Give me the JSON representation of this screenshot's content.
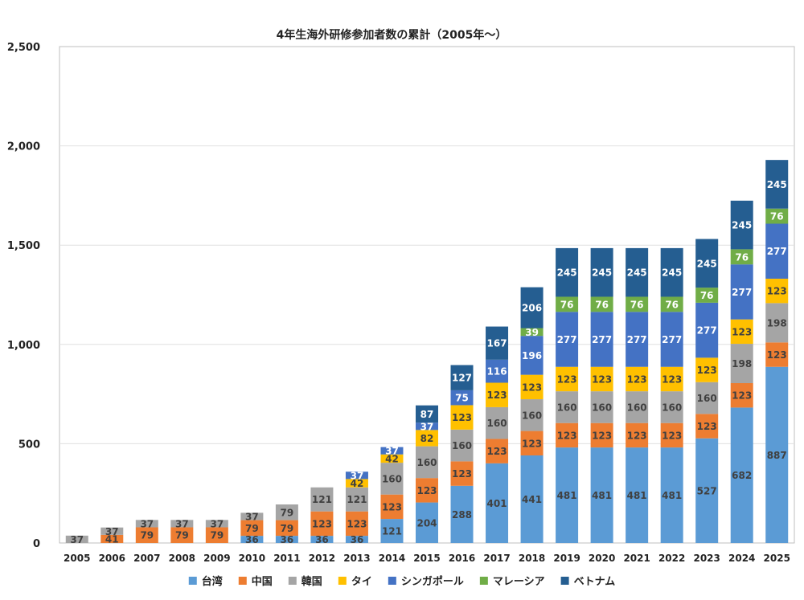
{
  "chart_data": {
    "type": "bar",
    "stacked": true,
    "title": "4年生海外研修参加者数の累計（2005年〜）",
    "xlabel": "",
    "ylabel": "",
    "ylim": [
      0,
      2500
    ],
    "yticks": [
      0,
      500,
      1000,
      1500,
      2000,
      2500
    ],
    "ytick_labels": [
      "0",
      "500",
      "1,000",
      "1,500",
      "2,000",
      "2,500"
    ],
    "grid": true,
    "legend_position": "bottom",
    "categories": [
      "2005",
      "2006",
      "2007",
      "2008",
      "2009",
      "2010",
      "2011",
      "2012",
      "2013",
      "2014",
      "2015",
      "2016",
      "2017",
      "2018",
      "2019",
      "2020",
      "2021",
      "2022",
      "2023",
      "2024",
      "2025"
    ],
    "series": [
      {
        "name": "台湾",
        "color": "#5B9BD5",
        "label_color": "#404040",
        "values": [
          0,
          0,
          0,
          0,
          0,
          36,
          36,
          36,
          36,
          121,
          204,
          288,
          401,
          441,
          481,
          481,
          481,
          481,
          527,
          682,
          887
        ]
      },
      {
        "name": "中国",
        "color": "#ED7D31",
        "label_color": "#404040",
        "values": [
          0,
          41,
          79,
          79,
          79,
          79,
          79,
          123,
          123,
          123,
          123,
          123,
          123,
          123,
          123,
          123,
          123,
          123,
          123,
          123,
          123
        ]
      },
      {
        "name": "韓国",
        "color": "#A5A5A5",
        "label_color": "#404040",
        "values": [
          37,
          37,
          37,
          37,
          37,
          37,
          79,
          121,
          121,
          160,
          160,
          160,
          160,
          160,
          160,
          160,
          160,
          160,
          160,
          198,
          198
        ]
      },
      {
        "name": "タイ",
        "color": "#FFC000",
        "label_color": "#404040",
        "values": [
          0,
          0,
          0,
          0,
          0,
          0,
          0,
          0,
          42,
          42,
          82,
          123,
          123,
          123,
          123,
          123,
          123,
          123,
          123,
          123,
          123
        ]
      },
      {
        "name": "シンガポール",
        "color": "#4472C4",
        "label_color": "#ffffff",
        "values": [
          0,
          0,
          0,
          0,
          0,
          0,
          0,
          0,
          37,
          37,
          37,
          75,
          116,
          196,
          277,
          277,
          277,
          277,
          277,
          277,
          277
        ]
      },
      {
        "name": "マレーシア",
        "color": "#70AD47",
        "label_color": "#ffffff",
        "values": [
          0,
          0,
          0,
          0,
          0,
          0,
          0,
          0,
          0,
          0,
          0,
          0,
          0,
          39,
          76,
          76,
          76,
          76,
          76,
          76,
          76
        ]
      },
      {
        "name": "ベトナム",
        "color": "#255E91",
        "label_color": "#ffffff",
        "values": [
          0,
          0,
          0,
          0,
          0,
          0,
          0,
          0,
          0,
          0,
          87,
          127,
          167,
          206,
          245,
          245,
          245,
          245,
          245,
          245,
          245
        ]
      }
    ]
  }
}
